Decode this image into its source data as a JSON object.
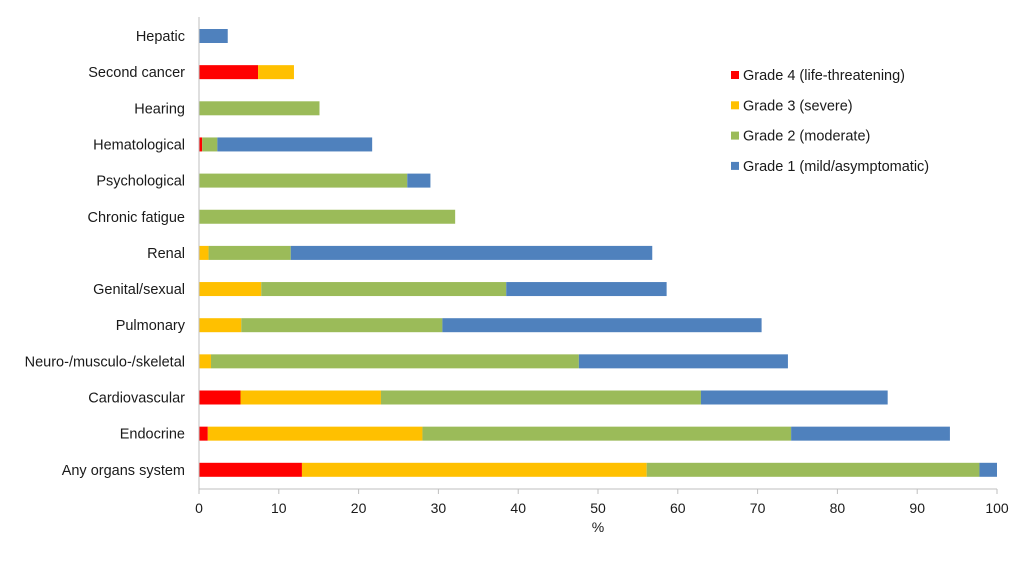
{
  "chart_data": {
    "type": "bar",
    "orientation": "horizontal",
    "stacked": true,
    "title": "",
    "xlabel": "%",
    "ylabel": "",
    "xlim": [
      0,
      100
    ],
    "xticks": [
      0,
      10,
      20,
      30,
      40,
      50,
      60,
      70,
      80,
      90,
      100
    ],
    "grid": false,
    "legend_position": "top-right",
    "categories": [
      "Hepatic",
      "Second cancer",
      "Hearing",
      "Hematological",
      "Psychological",
      "Chronic fatigue",
      "Renal",
      "Genital/sexual",
      "Pulmonary",
      "Neuro-/musculo-/skeletal",
      "Cardiovascular",
      "Endocrine",
      "Any organs system"
    ],
    "series": [
      {
        "name": "Grade 4 (life-threatening)",
        "color": "#ff0000",
        "values": [
          0,
          7.4,
          0,
          0.4,
          0,
          0,
          0,
          0,
          0,
          0,
          5.2,
          1.1,
          12.9
        ]
      },
      {
        "name": "Grade 3 (severe)",
        "color": "#ffc000",
        "values": [
          0,
          4.5,
          0,
          0,
          0,
          0,
          1.2,
          7.8,
          5.3,
          1.5,
          17.6,
          26.9,
          43.2
        ]
      },
      {
        "name": "Grade 2 (moderate)",
        "color": "#9bbb59",
        "values": [
          0,
          0,
          15.1,
          1.9,
          26.1,
          32.1,
          10.3,
          30.7,
          25.2,
          46.1,
          40.1,
          46.2,
          41.7
        ]
      },
      {
        "name": "Grade 1 (mild/asymptomatic)",
        "color": "#4f81bd",
        "values": [
          3.6,
          0,
          0,
          19.4,
          2.9,
          0,
          45.3,
          20.1,
          40.0,
          26.2,
          23.4,
          19.9,
          2.2
        ]
      }
    ]
  }
}
